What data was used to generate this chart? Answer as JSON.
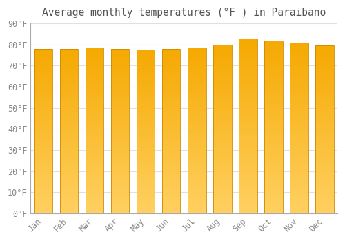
{
  "title": "Average monthly temperatures (°F ) in Paraibano",
  "months": [
    "Jan",
    "Feb",
    "Mar",
    "Apr",
    "May",
    "Jun",
    "Jul",
    "Aug",
    "Sep",
    "Oct",
    "Nov",
    "Dec"
  ],
  "values": [
    78,
    78,
    78.5,
    78,
    77.5,
    78,
    78.5,
    80,
    83,
    82,
    81,
    79.5
  ],
  "bar_color_top": "#F5A800",
  "bar_color_bottom": "#FFD060",
  "bar_edge_color": "#CC8800",
  "background_color": "#FFFFFF",
  "grid_color": "#E0E0E0",
  "text_color": "#888888",
  "title_color": "#555555",
  "ylim": [
    0,
    90
  ],
  "ytick_step": 10,
  "title_fontsize": 10.5,
  "tick_fontsize": 8.5
}
